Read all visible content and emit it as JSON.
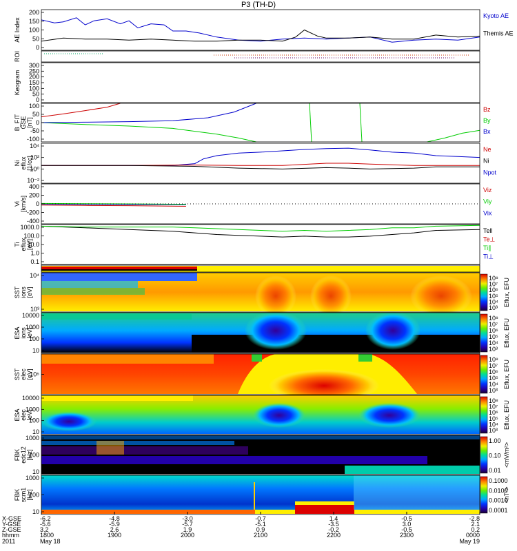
{
  "title": "P3 (TH-D)",
  "chart_data": [
    {
      "id": "ae",
      "type": "line",
      "ylabel_lines": [
        "AE Index"
      ],
      "ylim": [
        0,
        200
      ],
      "yticks": [
        "200",
        "150",
        "100",
        "50",
        "0"
      ],
      "legend": [
        {
          "label": "Kyoto AE",
          "color": "#0000cc"
        },
        {
          "label": "Themis AE",
          "color": "#000000"
        }
      ],
      "series": [
        {
          "name": "Kyoto AE",
          "color": "#0000cc",
          "x": [
            0,
            0.03,
            0.05,
            0.08,
            0.1,
            0.12,
            0.15,
            0.18,
            0.2,
            0.22,
            0.25,
            0.28,
            0.3,
            0.33,
            0.36,
            0.4,
            0.45,
            0.5,
            0.55,
            0.6,
            0.65,
            0.7,
            0.75,
            0.8,
            0.85,
            0.9,
            0.95,
            1.0
          ],
          "values": [
            150,
            135,
            140,
            160,
            125,
            145,
            155,
            130,
            145,
            110,
            130,
            125,
            95,
            95,
            85,
            65,
            50,
            45,
            55,
            60,
            55,
            60,
            65,
            40,
            50,
            55,
            50,
            65
          ]
        },
        {
          "name": "Themis AE",
          "color": "#000000",
          "x": [
            0,
            0.05,
            0.1,
            0.15,
            0.2,
            0.25,
            0.3,
            0.35,
            0.4,
            0.45,
            0.5,
            0.55,
            0.58,
            0.6,
            0.63,
            0.65,
            0.7,
            0.75,
            0.8,
            0.85,
            0.9,
            0.95,
            1.0
          ],
          "values": [
            45,
            60,
            55,
            55,
            50,
            55,
            50,
            45,
            45,
            50,
            50,
            45,
            65,
            100,
            70,
            60,
            60,
            65,
            55,
            55,
            75,
            65,
            70
          ]
        }
      ]
    },
    {
      "id": "roi",
      "type": "scatter",
      "ylabel_lines": [
        "ROI"
      ],
      "ylim": [
        0,
        1
      ],
      "yticks": []
    },
    {
      "id": "keogram",
      "type": "line",
      "ylabel_lines": [
        "Keogram"
      ],
      "ylim": [
        0,
        300
      ],
      "yticks": [
        "300",
        "250",
        "200",
        "150",
        "100",
        "50",
        "0"
      ]
    },
    {
      "id": "bfit",
      "type": "line",
      "ylabel_lines": [
        "B_FIT",
        "GSE",
        "[nT]"
      ],
      "ylim": [
        -100,
        100
      ],
      "yticks": [
        "100",
        "50",
        "0",
        "-50",
        "-100"
      ],
      "legend": [
        {
          "label": "Bz",
          "color": "#cc0000"
        },
        {
          "label": "By",
          "color": "#00cc00"
        },
        {
          "label": "Bx",
          "color": "#0000cc"
        }
      ],
      "series": [
        {
          "name": "Bz",
          "color": "#cc0000",
          "x": [
            0,
            0.05,
            0.1,
            0.15,
            0.18
          ],
          "values": [
            30,
            45,
            62,
            80,
            100
          ]
        },
        {
          "name": "By",
          "color": "#00cc00",
          "x": [
            0,
            0.1,
            0.2,
            0.3,
            0.35,
            0.4,
            0.45,
            0.49
          ],
          "values": [
            0,
            -10,
            -18,
            -30,
            -45,
            -60,
            -80,
            -100
          ]
        },
        {
          "name": "By2",
          "color": "#00cc00",
          "x": [
            0.88,
            0.92,
            0.96,
            1.0
          ],
          "values": [
            -100,
            -80,
            -55,
            -40
          ]
        },
        {
          "name": "Bx",
          "color": "#0000cc",
          "x": [
            0,
            0.1,
            0.2,
            0.3,
            0.38,
            0.44,
            0.49
          ],
          "values": [
            0,
            2,
            5,
            10,
            25,
            55,
            100
          ]
        }
      ]
    },
    {
      "id": "ni",
      "type": "line",
      "ylabel_lines": [
        "Ni",
        "eflux",
        "[1/cc]"
      ],
      "ylim": [
        -4,
        5
      ],
      "yticks": [
        "10⁴",
        "10²",
        "10⁰",
        "10⁻²"
      ],
      "legend": [
        {
          "label": "Ne",
          "color": "#cc0000"
        },
        {
          "label": "Ni",
          "color": "#000000"
        },
        {
          "label": "Npot",
          "color": "#0000cc"
        }
      ],
      "series": [
        {
          "name": "Npot",
          "color": "#0000cc",
          "x": [
            0,
            0.2,
            0.3,
            0.35,
            0.37,
            0.4,
            0.45,
            0.5,
            0.55,
            0.6,
            0.65,
            0.7,
            0.75,
            0.8,
            0.85,
            0.9,
            0.95,
            1.0
          ],
          "values": [
            0,
            0,
            0,
            0.4,
            1.5,
            2.2,
            2.8,
            3.0,
            3.3,
            3.6,
            3.8,
            3.9,
            3.5,
            3.0,
            2.8,
            2.2,
            2.0,
            1.8
          ]
        },
        {
          "name": "Ne",
          "color": "#cc0000",
          "x": [
            0,
            0.2,
            0.35,
            0.45,
            0.55,
            0.65,
            0.7,
            0.75,
            0.85,
            0.9,
            1.0
          ],
          "values": [
            0,
            0,
            0.1,
            0,
            0,
            0.5,
            0.5,
            0.3,
            0,
            0,
            0
          ]
        },
        {
          "name": "Ni",
          "color": "#000000",
          "x": [
            0,
            0.2,
            0.35,
            0.45,
            0.55,
            0.65,
            0.7,
            0.75,
            0.85,
            0.9,
            1.0
          ],
          "values": [
            0,
            0,
            -0.2,
            -0.6,
            -0.8,
            -0.5,
            -0.6,
            -0.8,
            -0.6,
            -0.3,
            -0.3
          ]
        }
      ]
    },
    {
      "id": "vi",
      "type": "line",
      "ylabel_lines": [
        "Vi",
        "[km/s]"
      ],
      "ylim": [
        -500,
        500
      ],
      "yticks": [
        "400",
        "200",
        "0",
        "-200",
        "-400"
      ],
      "legend": [
        {
          "label": "Viz",
          "color": "#cc0000"
        },
        {
          "label": "Viy",
          "color": "#00cc00"
        },
        {
          "label": "Vix",
          "color": "#0000cc"
        }
      ],
      "series": [
        {
          "name": "Vix",
          "color": "#0000cc",
          "x": [
            0,
            0.1,
            0.2,
            0.33
          ],
          "values": [
            -5,
            -10,
            -15,
            -20
          ]
        },
        {
          "name": "Viy",
          "color": "#00cc00",
          "x": [
            0,
            0.1,
            0.2,
            0.33
          ],
          "values": [
            10,
            5,
            0,
            -10
          ]
        },
        {
          "name": "Viz",
          "color": "#cc0000",
          "x": [
            0,
            0.1,
            0.2,
            0.33
          ],
          "values": [
            -30,
            -40,
            -45,
            -60
          ]
        }
      ]
    },
    {
      "id": "ti",
      "type": "line",
      "ylabel_lines": [
        "Ti",
        "eflux",
        "[eV]"
      ],
      "ylim": [
        -1.3,
        3.5
      ],
      "yticks": [
        "1000.0",
        "100.0",
        "10.0",
        "1.0",
        "0.1"
      ],
      "legend": [
        {
          "label": "Tell",
          "color": "#000000"
        },
        {
          "label": "Te⊥",
          "color": "#cc0000"
        },
        {
          "label": "Ti∥",
          "color": "#00cc00"
        },
        {
          "label": "Ti⊥",
          "color": "#0000cc"
        }
      ],
      "series": [
        {
          "name": "Tell",
          "color": "#000000",
          "x": [
            0,
            0.1,
            0.2,
            0.3,
            0.35,
            0.4,
            0.45,
            0.5,
            0.55,
            0.6,
            0.65,
            0.7,
            0.75,
            0.8,
            0.85,
            0.9,
            1.0
          ],
          "values": [
            3.3,
            3.1,
            2.9,
            2.7,
            2.5,
            2.3,
            2.2,
            2.1,
            2.0,
            2.1,
            2.0,
            2.0,
            2.1,
            2.3,
            2.5,
            2.8,
            2.9
          ]
        },
        {
          "name": "Ti∥",
          "color": "#00cc00",
          "x": [
            0,
            0.1,
            0.2,
            0.3,
            0.35,
            0.4,
            0.45,
            0.5,
            0.55,
            0.6,
            0.65,
            0.7,
            0.75,
            0.8,
            0.85,
            0.9,
            1.0
          ],
          "values": [
            3.3,
            3.2,
            3.2,
            3.2,
            3.1,
            3.0,
            2.9,
            2.8,
            2.7,
            2.8,
            2.7,
            2.8,
            2.9,
            3.1,
            3.1,
            3.3,
            3.4
          ]
        }
      ]
    },
    {
      "id": "flag",
      "type": "heatmap",
      "ylabel_lines": [],
      "yticks": []
    },
    {
      "id": "sst1",
      "type": "heatmap",
      "ylabel_lines": [
        "SST",
        "ions",
        "[eV]"
      ],
      "yticks": [
        "10⁴",
        "10³"
      ],
      "cb_title": "Eflux, EFU",
      "cb_ticks": [
        "10⁸",
        "10⁷",
        "10⁶",
        "10⁵",
        "10⁴",
        "10³"
      ]
    },
    {
      "id": "esa1",
      "type": "heatmap",
      "ylabel_lines": [
        "ESA",
        "ions",
        "[eV]"
      ],
      "yticks": [
        "10000",
        "1000",
        "100",
        "10"
      ],
      "cb_title": "Eflux, EFU",
      "cb_ticks": [
        "10⁸",
        "10⁷",
        "10⁶",
        "10⁵",
        "10⁴",
        "10³"
      ]
    },
    {
      "id": "sst2",
      "type": "heatmap",
      "ylabel_lines": [
        "SST",
        "elec",
        "[eV]"
      ],
      "yticks": [
        "10⁵"
      ],
      "cb_title": "Eflux, EFU",
      "cb_ticks": [
        "10⁸",
        "10⁷",
        "10⁶",
        "10⁵",
        "10⁴",
        "10³"
      ]
    },
    {
      "id": "esa2",
      "type": "heatmap",
      "ylabel_lines": [
        "ESA",
        "elec",
        "[eV]"
      ],
      "yticks": [
        "10000",
        "1000",
        "100",
        "10"
      ],
      "cb_title": "Eflux, EFU",
      "cb_ticks": [
        "10⁸",
        "10⁷",
        "10⁶",
        "10⁵",
        "10⁴",
        "10³"
      ]
    },
    {
      "id": "fbk1",
      "type": "heatmap",
      "ylabel_lines": [
        "FBK",
        "edc12",
        "[Hz]"
      ],
      "yticks": [
        "1000",
        "100",
        "10"
      ],
      "cb_title": "<mV/m²>",
      "cb_ticks": [
        "1.00",
        "0.10",
        "0.01"
      ]
    },
    {
      "id": "fbk2",
      "type": "heatmap",
      "ylabel_lines": [
        "FBK",
        "scm1",
        "[Hz]"
      ],
      "yticks": [
        "1000",
        "100",
        "10"
      ],
      "cb_title": "<nT²>",
      "cb_ticks": [
        "0.1000",
        "0.0100",
        "0.0010",
        "0.0001"
      ]
    }
  ],
  "x_axis": {
    "row_labels": [
      "X-GSE",
      "Y-GSE",
      "Z-GSE",
      "hhmm",
      "2011"
    ],
    "ticks": [
      {
        "x": 0.0,
        "vals": [
          "-6.2",
          "-5.6",
          "3.2",
          "1800",
          "May 18"
        ]
      },
      {
        "x": 0.1667,
        "vals": [
          "-4.8",
          "-5.9",
          "2.6",
          "1900",
          ""
        ]
      },
      {
        "x": 0.3333,
        "vals": [
          "-3.0",
          "-5.7",
          "1.9",
          "2000",
          ""
        ]
      },
      {
        "x": 0.5,
        "vals": [
          "-0.7",
          "-5.1",
          "0.9",
          "2100",
          ""
        ]
      },
      {
        "x": 0.6667,
        "vals": [
          "1.4",
          "-3.5",
          "-0.2",
          "2200",
          ""
        ]
      },
      {
        "x": 0.8333,
        "vals": [
          "-0.5",
          "3.0",
          "-0.5",
          "2300",
          ""
        ]
      },
      {
        "x": 1.0,
        "vals": [
          "-2.8",
          "2.1",
          "0.2",
          "0000",
          "May 19"
        ]
      }
    ]
  }
}
